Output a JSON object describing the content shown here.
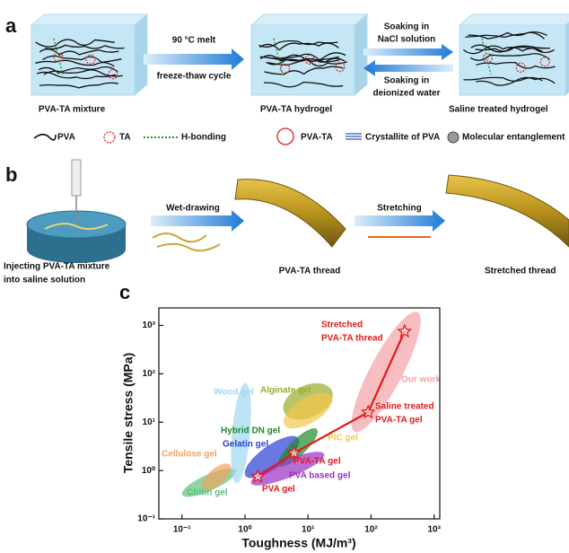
{
  "panel_a": {
    "label": "a",
    "arrow_1": [
      "90 °C melt",
      "freeze-thaw cycle"
    ],
    "arrow_2_forward": [
      "Soaking in",
      "NaCl solution"
    ],
    "arrow_2_back": [
      "Soaking in",
      "deionized water"
    ],
    "states": [
      "PVA-TA mixture",
      "PVA-TA hydrogel",
      "Saline treated hydrogel"
    ],
    "legend": [
      "PVA",
      "TA",
      "H-bonding",
      "PVA-TA",
      "Crystallite of PVA",
      "Molecular entanglement"
    ]
  },
  "panel_b": {
    "label": "b",
    "arrows": [
      "Wet-drawing",
      "Stretching"
    ],
    "states": [
      [
        "Injecting PVA-TA mixture",
        "into saline solution"
      ],
      "PVA-TA thread",
      "Stretched thread"
    ]
  },
  "chart_data": {
    "type": "scatter",
    "panel_label": "c",
    "xlabel": "Toughness (MJ/m³)",
    "ylabel": "Tensile stress (MPa)",
    "log_x": true,
    "log_y": true,
    "xlim": [
      0.043,
      1230
    ],
    "ylim": [
      0.1,
      2300
    ],
    "xticks": [
      {
        "value": 0.1,
        "label": "10⁻¹"
      },
      {
        "value": 1,
        "label": "10⁰"
      },
      {
        "value": 10,
        "label": "10¹"
      },
      {
        "value": 100,
        "label": "10²"
      },
      {
        "value": 1000,
        "label": "10³"
      }
    ],
    "yticks": [
      {
        "value": 0.1,
        "label": "10⁻¹"
      },
      {
        "value": 1,
        "label": "10⁰"
      },
      {
        "value": 10,
        "label": "10¹"
      },
      {
        "value": 100,
        "label": "10²"
      },
      {
        "value": 1000,
        "label": "10³"
      }
    ],
    "regions": [
      {
        "name": "Chitin gel",
        "color": "#5cc27a",
        "x": [
          0.12,
          0.6
        ],
        "y": [
          0.35,
          0.9
        ]
      },
      {
        "name": "Cellulose gel",
        "color": "#f4a460",
        "x": [
          0.25,
          0.5
        ],
        "y": [
          0.5,
          1.1
        ]
      },
      {
        "name": "Wood gel",
        "color": "#9fd8f0",
        "x": [
          0.75,
          1.0
        ],
        "y": [
          0.7,
          50
        ]
      },
      {
        "name": "Alginate gel",
        "color": "#9aab2a",
        "x": [
          5,
          20
        ],
        "y": [
          18,
          40
        ]
      },
      {
        "name": "PIC gel",
        "color": "#f2c84b",
        "x": [
          5,
          20
        ],
        "y": [
          10,
          30
        ]
      },
      {
        "name": "Gelatin gel",
        "color": "#2a3fd6",
        "x": [
          1.2,
          6
        ],
        "y": [
          0.9,
          4
        ]
      },
      {
        "name": "Hybrid DN gel",
        "color": "#1f8a2a",
        "x": [
          4,
          12
        ],
        "y": [
          1.5,
          6
        ]
      },
      {
        "name": "PVA based  gel",
        "color": "#9a2fc4",
        "x": [
          1.5,
          15
        ],
        "y": [
          0.6,
          2
        ]
      },
      {
        "name": "Our work",
        "color": "#f4a3a8",
        "x": [
          60,
          500
        ],
        "y": [
          8,
          1500
        ]
      }
    ],
    "points": {
      "color": "#e3191c",
      "x": [
        1.6,
        6,
        90,
        340
      ],
      "y": [
        0.75,
        2.3,
        16,
        750
      ],
      "labels": [
        [
          "PVA gel"
        ],
        [
          "PVA-TA gel"
        ],
        [
          "Saline treated",
          "PVA-TA gel"
        ],
        [
          "Stretched",
          "PVA-TA thread"
        ]
      ]
    }
  }
}
